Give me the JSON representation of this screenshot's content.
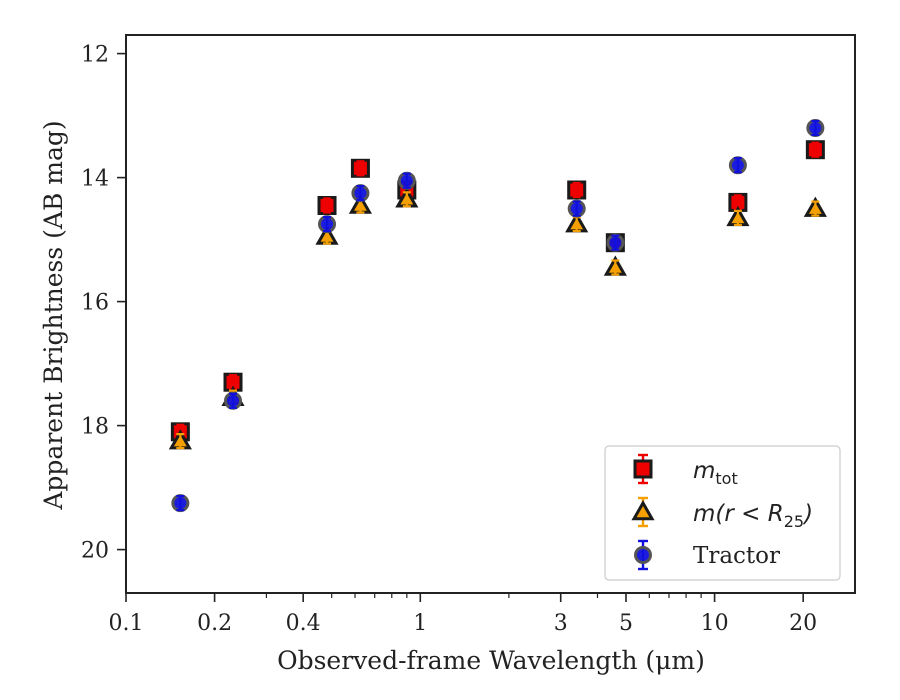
{
  "chart_data": {
    "type": "scatter",
    "title": "",
    "xlabel": "Observed-frame Wavelength (μm)",
    "ylabel": "Apparent Brightness (AB mag)",
    "x_scale": "log",
    "xlim": [
      0.1,
      30
    ],
    "ylim": [
      20.7,
      11.7
    ],
    "y_inverted": true,
    "grid": false,
    "legend_position": "lower-right",
    "x_ticks": [
      0.1,
      0.2,
      0.4,
      1,
      3,
      5,
      10,
      20
    ],
    "x_tick_labels": [
      "0.1",
      "0.2",
      "0.4",
      "1",
      "3",
      "5",
      "10",
      "20"
    ],
    "y_ticks": [
      12,
      14,
      16,
      18,
      20
    ],
    "y_tick_labels": [
      "12",
      "14",
      "16",
      "18",
      "20"
    ],
    "series": [
      {
        "name": "m_tot",
        "marker": "square",
        "color": "#ee0000",
        "points": [
          {
            "x": 0.153,
            "y": 18.1
          },
          {
            "x": 0.231,
            "y": 17.3
          },
          {
            "x": 0.482,
            "y": 14.45
          },
          {
            "x": 0.626,
            "y": 13.85
          },
          {
            "x": 0.9,
            "y": 14.2
          },
          {
            "x": 3.4,
            "y": 14.2
          },
          {
            "x": 4.6,
            "y": 15.05
          },
          {
            "x": 12.0,
            "y": 14.4
          },
          {
            "x": 22.0,
            "y": 13.55
          }
        ]
      },
      {
        "name": "m(r < R_25)",
        "marker": "triangle",
        "color": "#f5a000",
        "points": [
          {
            "x": 0.153,
            "y": 18.25
          },
          {
            "x": 0.231,
            "y": 17.55
          },
          {
            "x": 0.482,
            "y": 14.95
          },
          {
            "x": 0.626,
            "y": 14.45
          },
          {
            "x": 0.9,
            "y": 14.35
          },
          {
            "x": 3.4,
            "y": 14.75
          },
          {
            "x": 4.6,
            "y": 15.45
          },
          {
            "x": 12.0,
            "y": 14.65
          },
          {
            "x": 22.0,
            "y": 14.5
          }
        ]
      },
      {
        "name": "Tractor",
        "marker": "circle",
        "color": "#1010dd",
        "points": [
          {
            "x": 0.153,
            "y": 19.25
          },
          {
            "x": 0.231,
            "y": 17.6
          },
          {
            "x": 0.482,
            "y": 14.75
          },
          {
            "x": 0.626,
            "y": 14.25
          },
          {
            "x": 0.9,
            "y": 14.05
          },
          {
            "x": 3.4,
            "y": 14.5
          },
          {
            "x": 4.6,
            "y": 15.05
          },
          {
            "x": 12.0,
            "y": 13.8
          },
          {
            "x": 22.0,
            "y": 13.2
          }
        ]
      }
    ]
  },
  "legend": {
    "m_tot_base": "m",
    "m_tot_sub": "tot",
    "mr_prefix": "m(r < R",
    "mr_sub": "25",
    "mr_suffix": ")",
    "tractor": "Tractor"
  }
}
